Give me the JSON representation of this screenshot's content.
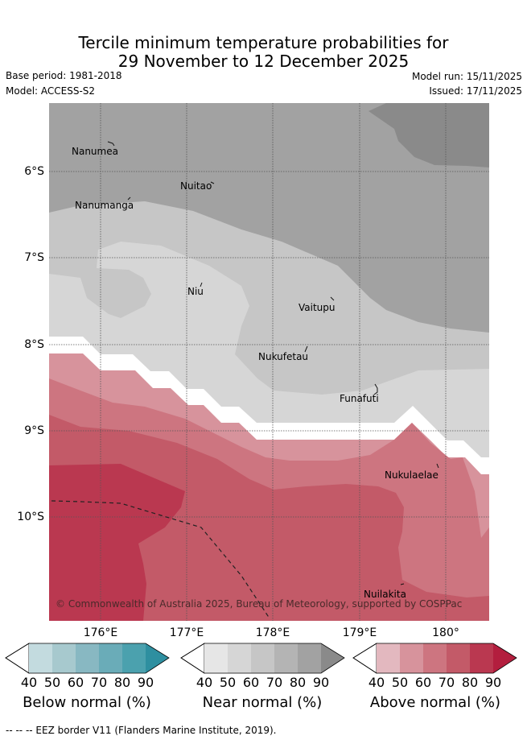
{
  "header": {
    "title_line1": "Tercile minimum temperature probabilities for",
    "title_line2": "29 November to 12 December 2025",
    "base_period": "Base period: 1981-2018",
    "model": "Model: ACCESS-S2",
    "model_run": "Model run: 15/11/2025",
    "issued": "Issued: 17/11/2025"
  },
  "map": {
    "lat_labels": [
      "6°S",
      "7°S",
      "8°S",
      "9°S",
      "10°S"
    ],
    "lon_labels": [
      "176°E",
      "177°E",
      "178°E",
      "179°E",
      "180°"
    ],
    "places": [
      "Nanumea",
      "Nuitao",
      "Nanumanga",
      "Niu",
      "Vaitupu",
      "Nukufetau",
      "Funafuti",
      "Nukulaelae",
      "Nuilakita"
    ],
    "copyright": "© Commonwealth of Australia 2025, Bureau of Meteorology, supported by COSPPac"
  },
  "colorbars": [
    {
      "title": "Below normal (%)",
      "ticks": [
        "40",
        "50",
        "60",
        "70",
        "80",
        "90"
      ],
      "colors": [
        "#c3dbdf",
        "#a7c9ce",
        "#88b8c2",
        "#6aacb8",
        "#4ba1ae",
        "#2e8fa0"
      ]
    },
    {
      "title": "Near normal (%)",
      "ticks": [
        "40",
        "50",
        "60",
        "70",
        "80",
        "90"
      ],
      "colors": [
        "#e6e6e6",
        "#d6d6d6",
        "#c6c6c6",
        "#b4b4b4",
        "#a2a2a2",
        "#8a8a8a"
      ]
    },
    {
      "title": "Above normal (%)",
      "ticks": [
        "40",
        "50",
        "60",
        "70",
        "80",
        "90"
      ],
      "colors": [
        "#e3b8bf",
        "#d7939c",
        "#cd7580",
        "#c35a68",
        "#ba3850",
        "#b31e3e"
      ]
    }
  ],
  "footer": {
    "legend": "--  --  -- EEZ border V11 (Flanders Marine Institute, 2019)."
  }
}
